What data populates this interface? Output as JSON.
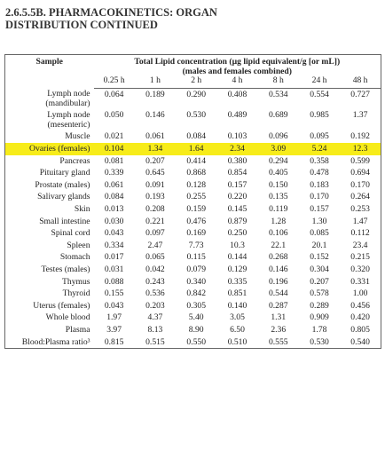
{
  "header": {
    "title": "2.6.5.5B. PHARMACOKINETICS: ORGAN DISTRIBUTION CONTINUED"
  },
  "table": {
    "sample_header": "Sample",
    "group_header": "Total Lipid concentration (µg lipid equivalent/g [or mL])",
    "group_subheader": "(males and females combined)",
    "columns": [
      "0.25 h",
      "1 h",
      "2 h",
      "4 h",
      "8 h",
      "24 h",
      "48 h"
    ],
    "highlighted_row": 3,
    "rows": [
      [
        "Lymph node (mandibular)",
        "0.064",
        "0.189",
        "0.290",
        "0.408",
        "0.534",
        "0.554",
        "0.727"
      ],
      [
        "Lymph node (mesenteric)",
        "0.050",
        "0.146",
        "0.530",
        "0.489",
        "0.689",
        "0.985",
        "1.37"
      ],
      [
        "Muscle",
        "0.021",
        "0.061",
        "0.084",
        "0.103",
        "0.096",
        "0.095",
        "0.192"
      ],
      [
        "Ovaries (females)",
        "0.104",
        "1.34",
        "1.64",
        "2.34",
        "3.09",
        "5.24",
        "12.3"
      ],
      [
        "Pancreas",
        "0.081",
        "0.207",
        "0.414",
        "0.380",
        "0.294",
        "0.358",
        "0.599"
      ],
      [
        "Pituitary gland",
        "0.339",
        "0.645",
        "0.868",
        "0.854",
        "0.405",
        "0.478",
        "0.694"
      ],
      [
        "Prostate (males)",
        "0.061",
        "0.091",
        "0.128",
        "0.157",
        "0.150",
        "0.183",
        "0.170"
      ],
      [
        "Salivary glands",
        "0.084",
        "0.193",
        "0.255",
        "0.220",
        "0.135",
        "0.170",
        "0.264"
      ],
      [
        "Skin",
        "0.013",
        "0.208",
        "0.159",
        "0.145",
        "0.119",
        "0.157",
        "0.253"
      ],
      [
        "Small intestine",
        "0.030",
        "0.221",
        "0.476",
        "0.879",
        "1.28",
        "1.30",
        "1.47"
      ],
      [
        "Spinal cord",
        "0.043",
        "0.097",
        "0.169",
        "0.250",
        "0.106",
        "0.085",
        "0.112"
      ],
      [
        "Spleen",
        "0.334",
        "2.47",
        "7.73",
        "10.3",
        "22.1",
        "20.1",
        "23.4"
      ],
      [
        "Stomach",
        "0.017",
        "0.065",
        "0.115",
        "0.144",
        "0.268",
        "0.152",
        "0.215"
      ],
      [
        "Testes (males)",
        "0.031",
        "0.042",
        "0.079",
        "0.129",
        "0.146",
        "0.304",
        "0.320"
      ],
      [
        "Thymus",
        "0.088",
        "0.243",
        "0.340",
        "0.335",
        "0.196",
        "0.207",
        "0.331"
      ],
      [
        "Thyroid",
        "0.155",
        "0.536",
        "0.842",
        "0.851",
        "0.544",
        "0.578",
        "1.00"
      ],
      [
        "Uterus (females)",
        "0.043",
        "0.203",
        "0.305",
        "0.140",
        "0.287",
        "0.289",
        "0.456"
      ],
      [
        "Whole blood",
        "1.97",
        "4.37",
        "5.40",
        "3.05",
        "1.31",
        "0.909",
        "0.420"
      ],
      [
        "Plasma",
        "3.97",
        "8.13",
        "8.90",
        "6.50",
        "2.36",
        "1.78",
        "0.805"
      ],
      [
        "Blood:Plasma ratio³",
        "0.815",
        "0.515",
        "0.550",
        "0.510",
        "0.555",
        "0.530",
        "0.540"
      ]
    ]
  }
}
